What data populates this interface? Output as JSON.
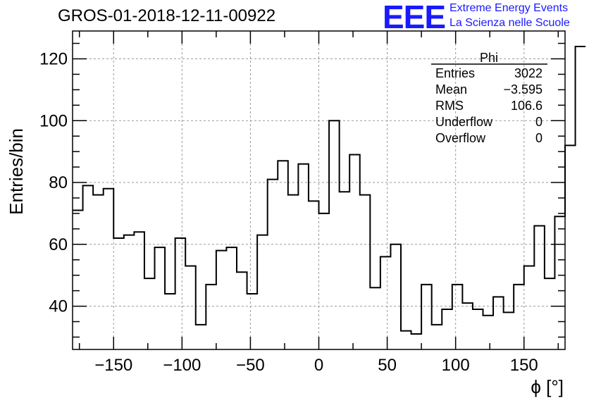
{
  "header": {
    "title": "GROS-01-2018-12-11-00922",
    "logo_text": "EEE",
    "logo_line1": "Extreme Energy Events",
    "logo_line2": "La Scienza nelle Scuole",
    "logo_color": "#1a1aff"
  },
  "stats_box": {
    "name": "Phi",
    "rows": [
      {
        "label": "Entries",
        "value": "3022"
      },
      {
        "label": "Mean",
        "value": "−3.595"
      },
      {
        "label": "RMS",
        "value": "106.6"
      },
      {
        "label": "Underflow",
        "value": "0"
      },
      {
        "label": "Overflow",
        "value": "0"
      }
    ]
  },
  "chart_data": {
    "type": "histogram",
    "xlabel": "ϕ [°]",
    "ylabel": "Entries/bin",
    "xlim": [
      -180,
      180
    ],
    "ylim": [
      26,
      129
    ],
    "bin_width": 7.5,
    "x_ticks": [
      -150,
      -100,
      -50,
      0,
      50,
      100,
      150
    ],
    "x_tick_labels": [
      "−150",
      "−100",
      "−50",
      "0",
      "50",
      "100",
      "150"
    ],
    "y_ticks": [
      40,
      60,
      80,
      100,
      120
    ],
    "y_tick_labels": [
      "40",
      "60",
      "80",
      "100",
      "120"
    ],
    "grid": true,
    "line_color": "#000000",
    "values": [
      71,
      79,
      76,
      78,
      62,
      63,
      64,
      49,
      59,
      44,
      62,
      53,
      34,
      47,
      58,
      59,
      51,
      44,
      63,
      81,
      87,
      76,
      86,
      74,
      70,
      100,
      77,
      89,
      76,
      46,
      56,
      60,
      32,
      31,
      47,
      34,
      39,
      47,
      41,
      39,
      37,
      43,
      38,
      47,
      53,
      66,
      49,
      69,
      92,
      124
    ]
  }
}
